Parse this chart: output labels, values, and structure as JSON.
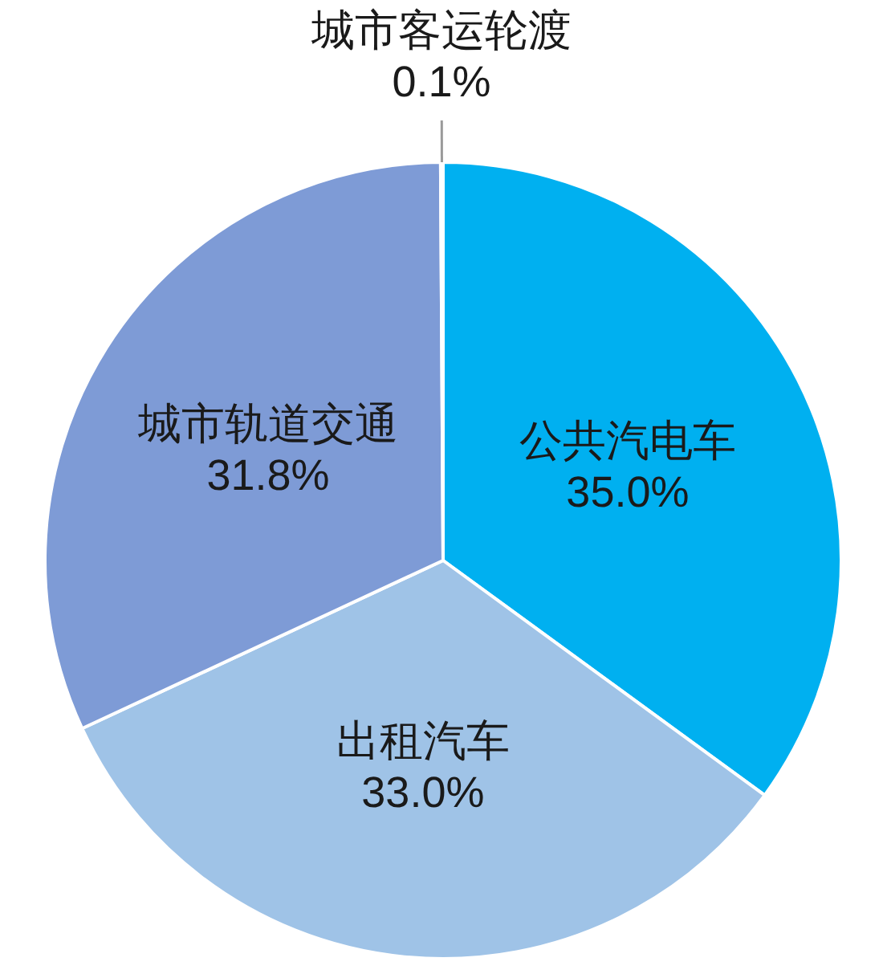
{
  "chart_data": {
    "type": "pie",
    "categories": [
      "公共汽电车",
      "出租汽车",
      "城市轨道交通",
      "城市客运轮渡"
    ],
    "values": [
      35.0,
      33.0,
      31.8,
      0.1
    ],
    "colors": [
      "#00b0f0",
      "#9fc3e7",
      "#7e9bd6",
      "#4472c4"
    ],
    "value_labels": [
      "35.0%",
      "33.0%",
      "31.8%",
      "0.1%"
    ]
  }
}
